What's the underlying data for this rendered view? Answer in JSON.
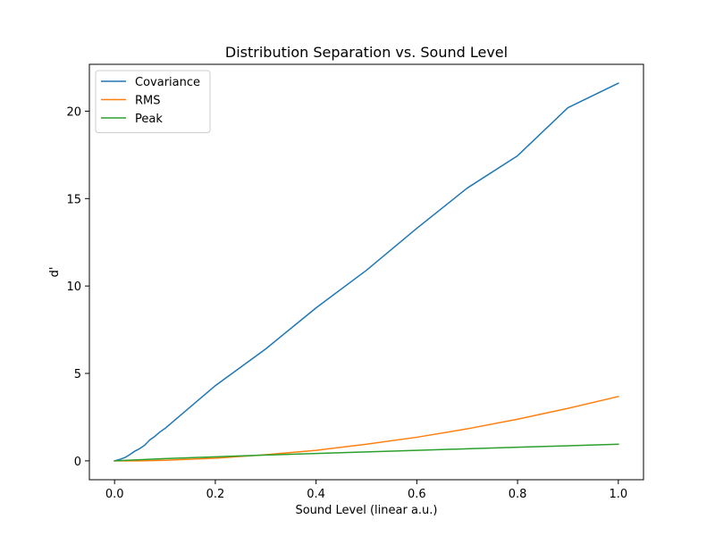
{
  "chart_data": {
    "type": "line",
    "title": "Distribution Separation vs. Sound Level",
    "xlabel": "Sound Level (linear a.u.)",
    "ylabel": "d'",
    "xlim": [
      -0.05,
      1.05
    ],
    "ylim": [
      -1.08,
      22.68
    ],
    "xticks": [
      0.0,
      0.2,
      0.4,
      0.6,
      0.8,
      1.0
    ],
    "xtick_labels": [
      "0.0",
      "0.2",
      "0.4",
      "0.6",
      "0.8",
      "1.0"
    ],
    "yticks": [
      0,
      5,
      10,
      15,
      20
    ],
    "ytick_labels": [
      "0",
      "5",
      "10",
      "15",
      "20"
    ],
    "grid": false,
    "legend_position": "top-left",
    "series": [
      {
        "name": "Covariance",
        "color": "#1f77b4",
        "x": [
          0.0,
          0.01,
          0.02,
          0.03,
          0.04,
          0.05,
          0.06,
          0.07,
          0.08,
          0.09,
          0.1,
          0.2,
          0.3,
          0.4,
          0.5,
          0.6,
          0.7,
          0.8,
          0.9,
          1.0
        ],
        "y": [
          0.0,
          0.08,
          0.18,
          0.35,
          0.55,
          0.7,
          0.9,
          1.2,
          1.4,
          1.65,
          1.85,
          4.3,
          6.4,
          8.75,
          10.9,
          13.3,
          15.6,
          17.45,
          20.2,
          21.6
        ]
      },
      {
        "name": "RMS",
        "color": "#ff7f0e",
        "x": [
          0.0,
          0.05,
          0.1,
          0.2,
          0.3,
          0.4,
          0.5,
          0.6,
          0.7,
          0.8,
          0.9,
          1.0
        ],
        "y": [
          0.0,
          0.0,
          0.03,
          0.15,
          0.35,
          0.6,
          0.95,
          1.35,
          1.83,
          2.38,
          3.0,
          3.68
        ]
      },
      {
        "name": "Peak",
        "color": "#2ca02c",
        "x": [
          0.0,
          0.1,
          0.2,
          0.3,
          0.4,
          0.5,
          0.6,
          0.7,
          0.8,
          0.9,
          1.0
        ],
        "y": [
          0.0,
          0.13,
          0.23,
          0.33,
          0.42,
          0.51,
          0.6,
          0.69,
          0.78,
          0.86,
          0.95
        ]
      }
    ]
  }
}
